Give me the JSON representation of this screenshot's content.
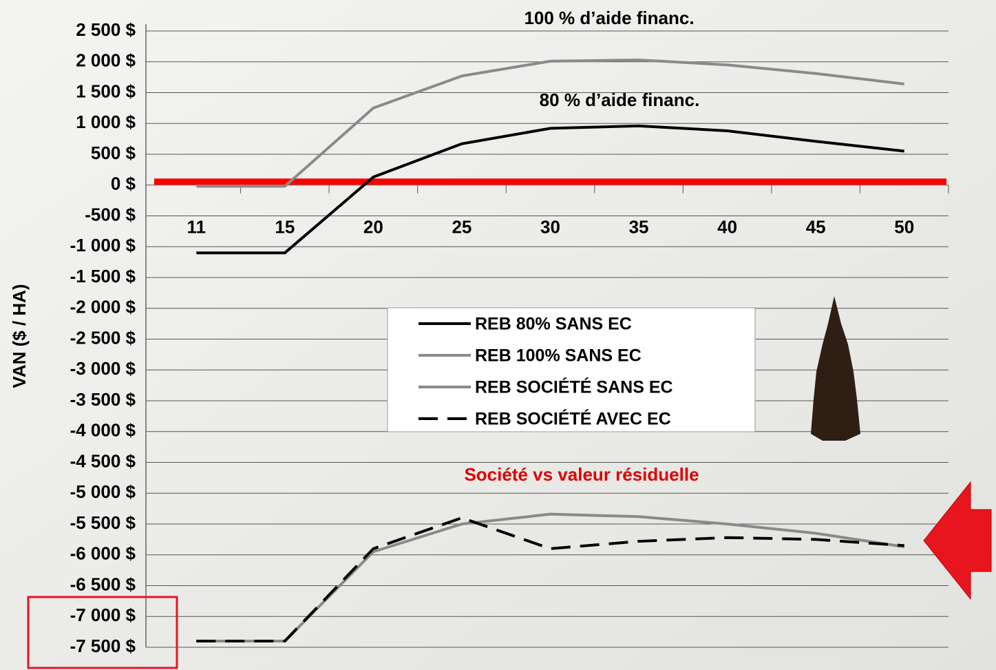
{
  "chart_data": {
    "type": "line",
    "y_label": "VAN ($ / HA)",
    "annotations": [
      "100 % d’aide financ.",
      "80 % d’aide financ.",
      "Société vs valeur résiduelle"
    ],
    "categories": [
      "11",
      "15",
      "20",
      "25",
      "30",
      "35",
      "40",
      "45",
      "50"
    ],
    "series": [
      {
        "name": "REB 80% SANS EC",
        "color": "#000000",
        "style": "solid",
        "values": [
          -1100,
          -1100,
          130,
          670,
          920,
          960,
          880,
          710,
          550
        ]
      },
      {
        "name": "REB 100% SANS EC",
        "color": "#8a8a8a",
        "style": "solid",
        "values": [
          -20,
          -20,
          1250,
          1770,
          2010,
          2030,
          1950,
          1810,
          1640
        ]
      },
      {
        "name": "REB SOCIÉTÉ SANS EC",
        "color": "#8a8a8a",
        "style": "solid",
        "values": [
          -7400,
          -7400,
          -5950,
          -5500,
          -5340,
          -5380,
          -5500,
          -5650,
          -5870
        ]
      },
      {
        "name": "REB SOCIÉTÉ AVEC EC",
        "color": "#000000",
        "style": "dashed",
        "values": [
          -7400,
          -7400,
          -5900,
          -5400,
          -5900,
          -5780,
          -5720,
          -5750,
          -5850
        ]
      }
    ],
    "ylim": [
      -7500,
      2500
    ],
    "yticks": [
      {
        "value": 2500,
        "label": "2 500 $"
      },
      {
        "value": 2000,
        "label": "2 000 $"
      },
      {
        "value": 1500,
        "label": "1 500 $"
      },
      {
        "value": 1000,
        "label": "1 000 $"
      },
      {
        "value": 500,
        "label": "500 $"
      },
      {
        "value": 0,
        "label": "0 $"
      },
      {
        "value": -500,
        "label": "-500 $"
      },
      {
        "value": -1000,
        "label": "-1 000 $"
      },
      {
        "value": -1500,
        "label": "-1 500 $"
      },
      {
        "value": -2000,
        "label": "-2 000 $"
      },
      {
        "value": -2500,
        "label": "-2 500 $"
      },
      {
        "value": -3000,
        "label": "-3 000 $"
      },
      {
        "value": -3500,
        "label": "-3 500 $"
      },
      {
        "value": -4000,
        "label": "-4 000 $"
      },
      {
        "value": -4500,
        "label": "-4 500 $"
      },
      {
        "value": -5000,
        "label": "-5 000 $"
      },
      {
        "value": -5500,
        "label": "-5 500 $"
      },
      {
        "value": -6000,
        "label": "-6 000 $"
      },
      {
        "value": -6500,
        "label": "-6 500 $"
      },
      {
        "value": -7000,
        "label": "-7 000 $"
      },
      {
        "value": -7500,
        "label": "-7 500 $"
      }
    ],
    "grid": true,
    "zero_line_color": "#ff0000"
  }
}
